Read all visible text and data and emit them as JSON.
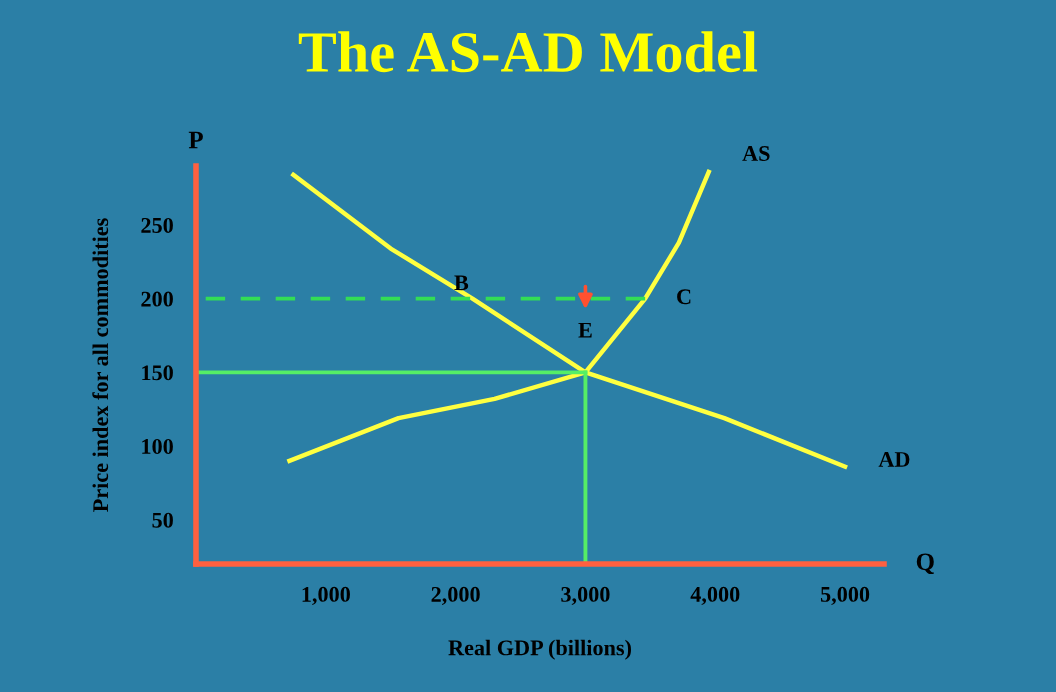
{
  "chart_data": {
    "type": "line",
    "title": "The AS-AD Model",
    "xlabel": "Real GDP (billions)",
    "ylabel": "Price index for all commodities",
    "xlim": [
      0,
      5300
    ],
    "ylim": [
      20,
      290
    ],
    "xticks": [
      {
        "value": 1000,
        "label": "1,000"
      },
      {
        "value": 2000,
        "label": "2,000"
      },
      {
        "value": 3000,
        "label": "3,000"
      },
      {
        "value": 4000,
        "label": "4,000"
      },
      {
        "value": 5000,
        "label": "5,000"
      }
    ],
    "yticks": [
      50,
      100,
      150,
      200,
      250
    ],
    "grid": false,
    "marker": "none",
    "series": [
      {
        "name": "AD",
        "color": "#ffff40",
        "x": [
          750,
          1500,
          2130,
          3000,
          4070,
          5000
        ],
        "values": [
          284,
          234,
          200,
          150,
          119,
          86
        ]
      },
      {
        "name": "AS",
        "color": "#ffff40",
        "x": [
          720,
          1560,
          2300,
          3000,
          3460,
          3720,
          3950
        ],
        "values": [
          90,
          119,
          132,
          150,
          200,
          238,
          286
        ]
      },
      {
        "color": "#33dd55",
        "line_style": "dashed",
        "x": [
          3460,
          0
        ],
        "values": [
          200,
          200
        ]
      },
      {
        "color": "#55ee66",
        "x": [
          0,
          3000
        ],
        "values": [
          150,
          150
        ]
      },
      {
        "color": "#55ee66",
        "x": [
          3000,
          3000
        ],
        "values": [
          20,
          150
        ]
      }
    ],
    "annotations": [
      {
        "text": "B",
        "x": 2130,
        "y": 200
      },
      {
        "text": "C",
        "x": 3460,
        "y": 200
      },
      {
        "text": "E",
        "x": 3000,
        "y": 150
      },
      "P",
      "Q"
    ]
  }
}
